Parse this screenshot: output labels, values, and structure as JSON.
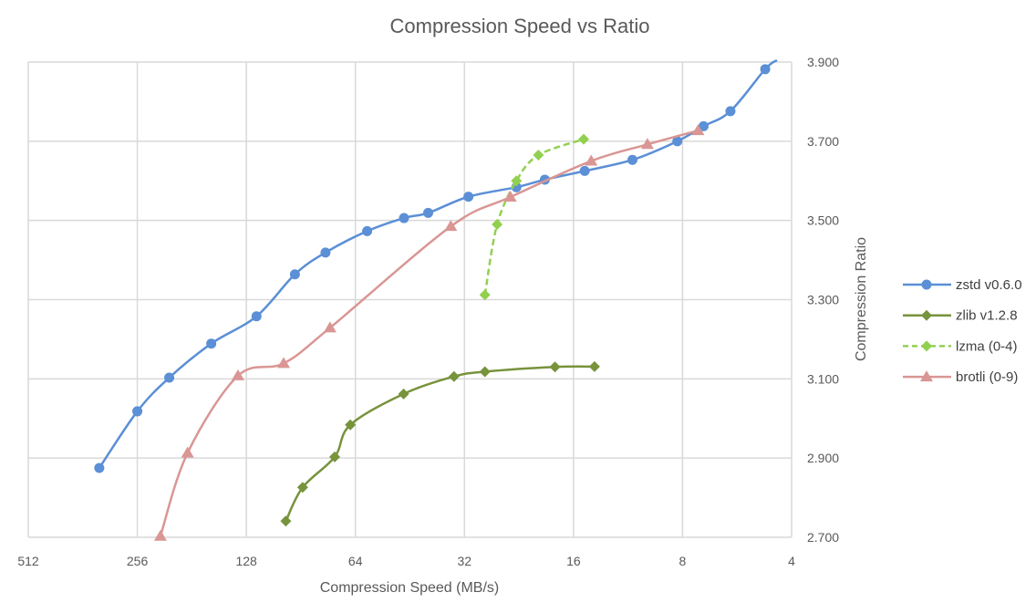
{
  "chart_data": {
    "type": "line",
    "title": "Compression Speed vs Ratio",
    "xlabel": "Compression Speed (MB/s)",
    "ylabel": "Compression Ratio",
    "x_scale": "log2",
    "x_reversed": true,
    "xlim": [
      512,
      4
    ],
    "ylim": [
      2.7,
      3.9
    ],
    "x_ticks": [
      "512",
      "256",
      "128",
      "64",
      "32",
      "16",
      "8",
      "4"
    ],
    "x_tick_values": [
      512,
      256,
      128,
      64,
      32,
      16,
      8,
      4
    ],
    "y_ticks": [
      "3.900",
      "3.700",
      "3.500",
      "3.300",
      "3.100",
      "2.900",
      "2.700"
    ],
    "y_tick_values": [
      3.9,
      3.7,
      3.5,
      3.3,
      3.1,
      2.9,
      2.7
    ],
    "y_axis_side": "right",
    "grid": true,
    "legend_position": "right",
    "series": [
      {
        "name": "zstd v0.6.0",
        "color": "#5b8fd6",
        "marker": "circle",
        "dashed": false,
        "x": [
          326,
          256,
          209,
          160,
          120,
          94,
          77.4,
          59.4,
          47,
          40.3,
          31.2,
          23.0,
          19.2,
          14.9,
          11.0,
          8.27,
          7.0,
          5.9,
          4.73
        ],
        "y": [
          2.875,
          3.018,
          3.103,
          3.189,
          3.258,
          3.364,
          3.419,
          3.473,
          3.506,
          3.519,
          3.56,
          3.584,
          3.603,
          3.625,
          3.653,
          3.7,
          3.738,
          3.776,
          3.882
        ]
      },
      {
        "name": "zlib v1.2.8",
        "color": "#77933c",
        "marker": "diamond",
        "dashed": false,
        "x": [
          99.6,
          89.5,
          73.0,
          66.1,
          47.1,
          34.2,
          28.1,
          18.0,
          14.0
        ],
        "y": [
          2.741,
          2.826,
          2.903,
          2.984,
          3.062,
          3.106,
          3.118,
          3.13,
          3.131
        ]
      },
      {
        "name": "lzma (0-4)",
        "color": "#92d050",
        "marker": "diamond",
        "dashed": true,
        "x": [
          28.1,
          26.0,
          23.0,
          20.0,
          15.0
        ],
        "y": [
          3.312,
          3.49,
          3.6,
          3.665,
          3.705
        ]
      },
      {
        "name": "brotli (0-9)",
        "color": "#d99694",
        "marker": "triangle",
        "dashed": false,
        "x": [
          221,
          186,
          135,
          101,
          75.2,
          34.9,
          23.9,
          14.3,
          10.0,
          7.25
        ],
        "y": [
          2.703,
          2.913,
          3.108,
          3.139,
          3.229,
          3.485,
          3.559,
          3.65,
          3.692,
          3.727
        ]
      }
    ]
  }
}
